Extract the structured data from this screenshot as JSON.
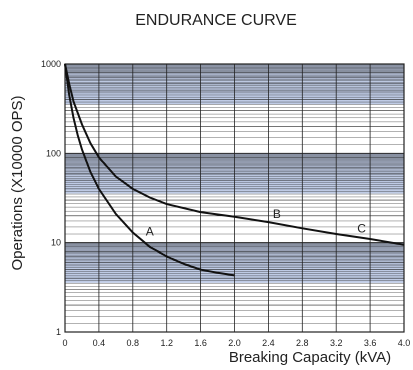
{
  "chart_data": {
    "type": "line",
    "title": "ENDURANCE CURVE",
    "xlabel": "Breaking Capacity (kVA)",
    "ylabel": "Operations (X10000 OPS)",
    "xlim": [
      0,
      4.0
    ],
    "ylim": [
      1,
      1000
    ],
    "y_scale": "log",
    "x_ticks": [
      "0",
      "0.4",
      "0.8",
      "1.2",
      "1.6",
      "2.0",
      "2.4",
      "2.8",
      "3.2",
      "3.6",
      "4.0"
    ],
    "y_ticks": [
      "1",
      "10",
      "100",
      "1000"
    ],
    "grid": true,
    "band_color": "#aab9dc",
    "series": [
      {
        "name": "A",
        "x": [
          0.0,
          0.05,
          0.1,
          0.15,
          0.2,
          0.3,
          0.4,
          0.6,
          0.8,
          1.0,
          1.2,
          1.4,
          1.6,
          1.8,
          2.0
        ],
        "y": [
          1000,
          450,
          250,
          160,
          110,
          62,
          40,
          21,
          13,
          9,
          7,
          5.8,
          5.0,
          4.6,
          4.3
        ]
      },
      {
        "name": "B",
        "x": [
          0.0,
          0.05,
          0.1,
          0.2,
          0.3,
          0.4,
          0.6,
          0.8,
          1.0,
          1.2,
          1.6,
          2.0,
          2.4,
          2.8,
          3.2,
          3.6,
          4.0
        ],
        "y": [
          1000,
          600,
          380,
          210,
          130,
          90,
          55,
          40,
          32,
          27,
          22,
          19.5,
          17,
          14.5,
          12.5,
          11,
          9.5
        ]
      }
    ],
    "annotations": [
      {
        "text": "A",
        "x": 1.0,
        "y": 12
      },
      {
        "text": "B",
        "x": 2.5,
        "y": 19
      },
      {
        "text": "C",
        "x": 3.5,
        "y": 13
      }
    ]
  }
}
